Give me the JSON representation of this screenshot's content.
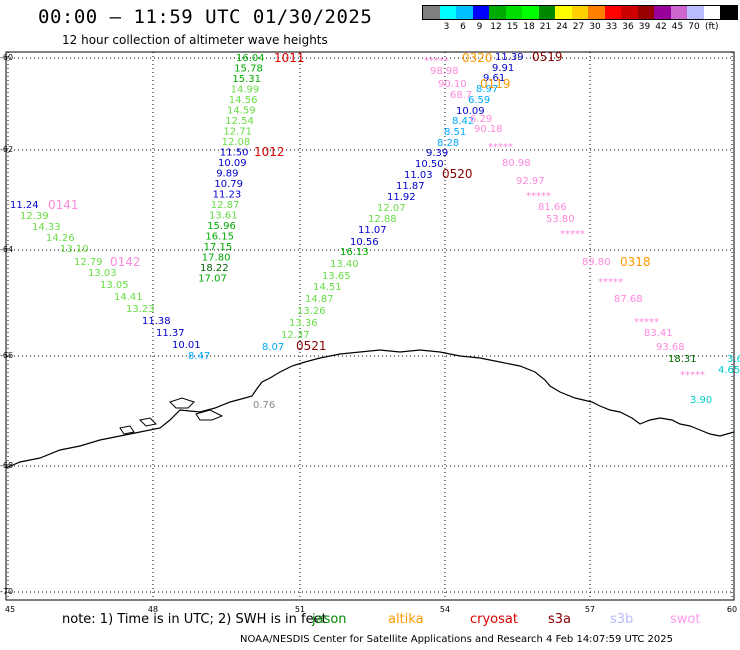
{
  "header": {
    "title": "00:00 – 11:59 UTC 01/30/2025",
    "subtitle": "12 hour collection of altimeter wave heights"
  },
  "legend": {
    "colors": [
      "#7f7f7f",
      "#00ffff",
      "#00bfff",
      "#0000ff",
      "#00aa00",
      "#00dd00",
      "#00ff00",
      "#008800",
      "#ffff00",
      "#ffd000",
      "#ff8000",
      "#ff0000",
      "#cc0000",
      "#990000",
      "#990099",
      "#cc66cc",
      "#bbbbff",
      "#ffffff",
      "#000000"
    ],
    "labels": [
      "3",
      "6",
      "9",
      "12",
      "15",
      "18",
      "21",
      "24",
      "27",
      "30",
      "33",
      "36",
      "39",
      "42",
      "45",
      "70"
    ],
    "unit": "(ft)"
  },
  "axes": {
    "lat_labels": [
      "-60",
      "-62",
      "-64",
      "-66",
      "-68",
      "-70"
    ],
    "lon_labels": [
      "45",
      "48",
      "51",
      "54",
      "57",
      "60"
    ]
  },
  "colors": {
    "jason": "#008800",
    "altika": "#ff9900",
    "cryosat": "#dd0000",
    "s3a": "#880000",
    "s3b": "#bbbbff",
    "swot": "#ff99ee",
    "coast": "#000000"
  },
  "chart_data": {
    "type": "scatter",
    "region": "Southern Ocean, 60S-70S / 45E-60E",
    "units": "ft",
    "tracks": [
      {
        "satellite": "jason",
        "pass": "0141",
        "values": [
          11.24,
          12.39,
          14.33,
          14.26,
          13.1,
          12.79,
          13.03,
          13.05,
          14.41,
          13.23,
          11.38,
          11.37,
          10.01,
          8.47
        ]
      },
      {
        "satellite": "cryosat",
        "pass": "1011",
        "values": [
          16.04,
          15.78,
          15.31,
          14.99,
          14.56,
          14.59,
          12.54,
          12.71,
          12.08,
          11.5,
          10.09,
          9.89,
          10.79,
          11.23,
          12.87,
          13.61,
          15.96,
          16.15,
          17.15,
          17.8,
          18.22,
          17.07
        ]
      },
      {
        "satellite": "jason",
        "pass": "0521",
        "values": [
          16.13,
          13.4,
          13.65,
          14.51,
          14.87,
          13.26,
          13.36,
          12.37,
          8.07
        ]
      },
      {
        "satellite": "altika",
        "pass": "0320",
        "values": [
          11.39,
          9.91,
          9.61,
          8.97,
          6.59,
          10.09,
          8.42,
          8.51,
          8.28,
          9.39,
          10.5,
          11.03,
          11.87,
          11.92,
          12.07,
          12.88,
          11.07,
          10.56
        ]
      },
      {
        "satellite": "swot",
        "pass": "0318",
        "values": [
          98.98,
          90.1,
          68.7,
          6.29,
          90.18,
          80.98,
          92.97,
          81.66,
          53.8,
          89.8,
          87.68,
          83.41,
          93.68
        ]
      },
      {
        "satellite": "jason",
        "pass": "",
        "values": [
          18.31,
          4.65,
          3.9
        ]
      }
    ],
    "land_label": "0.76"
  },
  "map_labels": {
    "col1": [
      "11.24",
      "12.39",
      "14.33",
      "14.26",
      "13.10",
      "12.79",
      "13.03",
      "13.05",
      "14.41",
      "13.23",
      "11.38",
      "11.37",
      "10.01",
      "8.47"
    ],
    "col2": [
      "16.04",
      "15.78",
      "15.31",
      "14.99",
      "14.56",
      "14.59",
      "12.54",
      "12.71",
      "12.08",
      "11.50",
      "10.09",
      "9.89",
      "10.79",
      "11.23",
      "12.87",
      "13.61",
      "15.96",
      "16.15",
      "17.15",
      "17.80",
      "18.22",
      "17.07"
    ],
    "col3": [
      "16.13",
      "13.40",
      "13.65",
      "14.51",
      "14.87",
      "13.26",
      "13.36",
      "12.37",
      "8.07"
    ],
    "col4": [
      "11.39",
      "9.91",
      "9.61",
      "8.97",
      "6.59",
      "10.09",
      "8.42",
      "8.51",
      "8.28",
      "9.39",
      "10.50",
      "11.03",
      "11.87",
      "11.92",
      "12.07",
      "12.88",
      "11.07",
      "10.56"
    ],
    "col5": [
      "98.98",
      "90.10",
      "68.7",
      "6.29",
      "90.18",
      "*****",
      "80.98",
      "92.97",
      "*****",
      "81.66",
      "53.80",
      "*****",
      "89.80",
      "*****",
      "87.68",
      "*****",
      "83.41",
      "93.68",
      "*****"
    ],
    "misc": [
      "18.31",
      "4.65",
      "3.90",
      "0.76",
      "*****",
      "3.6"
    ],
    "passes": [
      "1011",
      "1012",
      "0141",
      "0142",
      "0521",
      "0320",
      "0519",
      "0520",
      "0318",
      "0119"
    ]
  },
  "footer": {
    "note": "note:  1) Time is in UTC; 2) SWH is in feet",
    "sats": [
      "jason",
      "altika",
      "cryosat",
      "s3a",
      "s3b",
      "swot"
    ],
    "credit": "NOAA/NESDIS Center for Satellite Applications and Research     4 Feb 14:07:59 UTC 2025"
  }
}
